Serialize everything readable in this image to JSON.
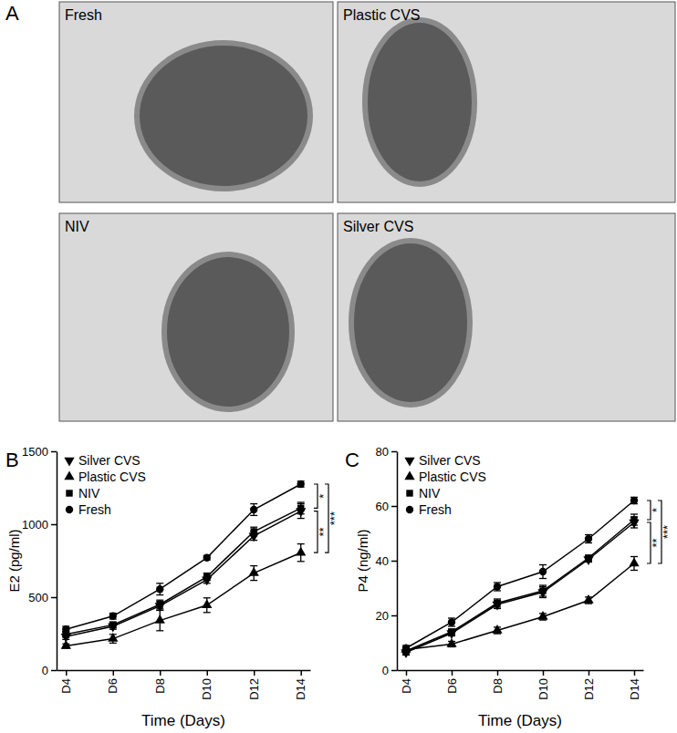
{
  "panel_a": {
    "label": "A",
    "images": [
      {
        "label": "Fresh"
      },
      {
        "label": "Plastic CVS"
      },
      {
        "label": "NIV"
      },
      {
        "label": "Silver CVS"
      }
    ]
  },
  "chart_data": [
    {
      "type": "line",
      "label": "B",
      "x_label": "Time (Days)",
      "y_label": "E2 (pg/ml)",
      "categories": [
        "D4",
        "D6",
        "D8",
        "D10",
        "D12",
        "D14"
      ],
      "ylim": [
        0,
        1500
      ],
      "yticks": [
        0,
        500,
        1000,
        1500
      ],
      "legend": "upper left",
      "series": [
        {
          "name": "Silver CVS",
          "color": "#000000",
          "marker": "triangle-down",
          "values": [
            230,
            300,
            440,
            620,
            920,
            1090
          ],
          "errors": [
            20,
            20,
            30,
            25,
            30,
            50
          ]
        },
        {
          "name": "Plastic CVS",
          "color": "#000000",
          "marker": "triangle",
          "values": [
            165,
            215,
            340,
            445,
            665,
            805
          ],
          "errors": [
            15,
            30,
            70,
            50,
            50,
            60
          ]
        },
        {
          "name": "NIV",
          "color": "#000000",
          "marker": "square",
          "values": [
            245,
            310,
            450,
            640,
            950,
            1110
          ],
          "errors": [
            20,
            20,
            30,
            25,
            30,
            40
          ]
        },
        {
          "name": "Fresh",
          "color": "#000000",
          "marker": "circle",
          "values": [
            280,
            370,
            555,
            770,
            1100,
            1275
          ],
          "errors": [
            20,
            20,
            40,
            15,
            40,
            20
          ]
        }
      ],
      "annotations": [
        {
          "text": "*",
          "from": 1110,
          "to": 1275
        },
        {
          "text": "**",
          "from": 805,
          "to": 1090
        },
        {
          "text": "***",
          "from": 805,
          "to": 1275
        }
      ]
    },
    {
      "type": "line",
      "label": "C",
      "x_label": "Time (Days)",
      "y_label": "P4 (ng/ml)",
      "categories": [
        "D4",
        "D6",
        "D8",
        "D10",
        "D12",
        "D14"
      ],
      "ylim": [
        0,
        80
      ],
      "yticks": [
        0,
        20,
        40,
        60,
        80
      ],
      "legend": "upper left",
      "series": [
        {
          "name": "Silver CVS",
          "color": "#000000",
          "marker": "triangle-down",
          "values": [
            6.5,
            13.5,
            24,
            28.5,
            40.5,
            54
          ],
          "errors": [
            1,
            1,
            1.5,
            2,
            1,
            2
          ]
        },
        {
          "name": "Plastic CVS",
          "color": "#000000",
          "marker": "triangle",
          "values": [
            7.5,
            9.5,
            14.5,
            19.5,
            25.5,
            39
          ],
          "errors": [
            1,
            1,
            1.2,
            1.2,
            1.2,
            2.5
          ]
        },
        {
          "name": "NIV",
          "color": "#000000",
          "marker": "square",
          "values": [
            7,
            14,
            24.5,
            29,
            41,
            55
          ],
          "errors": [
            1,
            1,
            1.5,
            2,
            1,
            2
          ]
        },
        {
          "name": "Fresh",
          "color": "#000000",
          "marker": "circle",
          "values": [
            8,
            17.5,
            30.5,
            36,
            48,
            62
          ],
          "errors": [
            1,
            1.5,
            1.5,
            2.5,
            1.5,
            1.2
          ]
        }
      ],
      "annotations": [
        {
          "text": "*",
          "from": 55,
          "to": 62
        },
        {
          "text": "**",
          "from": 39,
          "to": 54
        },
        {
          "text": "***",
          "from": 39,
          "to": 62
        }
      ]
    }
  ]
}
